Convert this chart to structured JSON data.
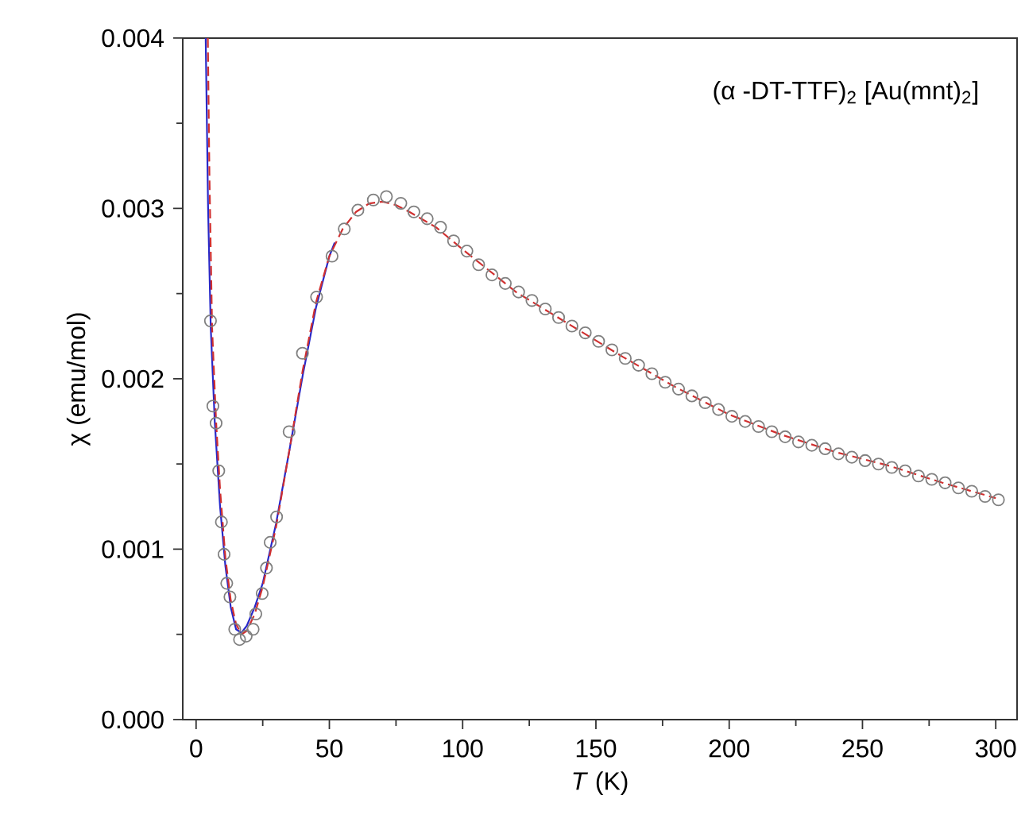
{
  "chart_data": {
    "type": "scatter",
    "xlabel": "*T* (K)",
    "ylabel": "χ (emu/mol)",
    "annotations": [
      "(α -DT-TTF)$_{2}$ [Au(mnt)$_{2}$]"
    ],
    "xlim": [
      -5,
      308
    ],
    "ylim": [
      0,
      0.004
    ],
    "xticks": [
      0,
      50,
      100,
      150,
      200,
      250,
      300
    ],
    "yticks": [
      {
        "value": 0,
        "label": "0.000"
      },
      0.001,
      0.002,
      0.003,
      0.004
    ],
    "series": [
      {
        "marker": "circle",
        "color": "#808080",
        "x": [
          5.4,
          6.3,
          7.5,
          8.5,
          9.5,
          10.5,
          11.5,
          12.7,
          14.5,
          16.3,
          18.8,
          21.4,
          22.4,
          24.8,
          26.4,
          27.8,
          30.2,
          34.9,
          39.9,
          45.2,
          51,
          55.6,
          60.7,
          66.5,
          71.4,
          76.8,
          81.7,
          86.7,
          91.7,
          96.6,
          101.6,
          106,
          111,
          116,
          121,
          126,
          131,
          136,
          141,
          146,
          151,
          156,
          161,
          166,
          171,
          176,
          181,
          186,
          191,
          196,
          201,
          206,
          211,
          216,
          221,
          226,
          231,
          236,
          241,
          246,
          251,
          256,
          261,
          266,
          271,
          276,
          281,
          286,
          291,
          296,
          301
        ],
        "values": [
          0.00234,
          0.00184,
          0.00174,
          0.00146,
          0.00116,
          0.00097,
          0.0008,
          0.00072,
          0.00053,
          0.00047,
          0.00049,
          0.00053,
          0.00062,
          0.00074,
          0.00089,
          0.00104,
          0.00119,
          0.00169,
          0.00215,
          0.00248,
          0.00272,
          0.00288,
          0.00299,
          0.00305,
          0.00307,
          0.00303,
          0.00298,
          0.00294,
          0.00289,
          0.00281,
          0.00275,
          0.00267,
          0.00261,
          0.00256,
          0.00251,
          0.00246,
          0.00241,
          0.00236,
          0.00231,
          0.00227,
          0.00222,
          0.00217,
          0.00212,
          0.00208,
          0.00203,
          0.00198,
          0.00194,
          0.0019,
          0.00186,
          0.00182,
          0.00178,
          0.00175,
          0.00172,
          0.00169,
          0.00166,
          0.00163,
          0.00161,
          0.00159,
          0.00156,
          0.00154,
          0.00152,
          0.0015,
          0.00148,
          0.00146,
          0.00143,
          0.00141,
          0.00139,
          0.00136,
          0.00134,
          0.00131,
          0.00129
        ]
      },
      {
        "type": "line",
        "line_style": "solid",
        "color": "#2828c8",
        "x": [
          3.6,
          4.5,
          5.5,
          7,
          9,
          11,
          13,
          15,
          17,
          19,
          22,
          25,
          30,
          35,
          40,
          45,
          50,
          52
        ],
        "values": [
          0.004,
          0.003,
          0.0023,
          0.00175,
          0.00125,
          0.0009,
          0.00066,
          0.00053,
          0.00051,
          0.00055,
          0.00066,
          0.0008,
          0.00115,
          0.00158,
          0.00202,
          0.00242,
          0.00272,
          0.0028
        ]
      },
      {
        "type": "line",
        "line_style": "dashed",
        "color": "#d03030",
        "x": [
          4.4,
          5,
          6,
          7.5,
          9,
          11,
          13,
          15,
          17,
          19,
          22,
          25,
          30,
          35,
          40,
          45,
          50,
          55,
          60,
          65,
          70,
          75,
          80,
          90,
          100,
          120,
          140,
          160,
          180,
          200,
          220,
          240,
          260,
          280,
          300
        ],
        "values": [
          0.004,
          0.0032,
          0.0023,
          0.00175,
          0.00135,
          0.00095,
          0.0007,
          0.00056,
          0.0005,
          0.00052,
          0.00062,
          0.00078,
          0.00113,
          0.00158,
          0.00205,
          0.00245,
          0.00272,
          0.00288,
          0.00298,
          0.00303,
          0.00304,
          0.00302,
          0.00298,
          0.00289,
          0.00276,
          0.00251,
          0.00232,
          0.00213,
          0.00195,
          0.00179,
          0.00167,
          0.00157,
          0.00149,
          0.00139,
          0.0013
        ]
      }
    ]
  }
}
